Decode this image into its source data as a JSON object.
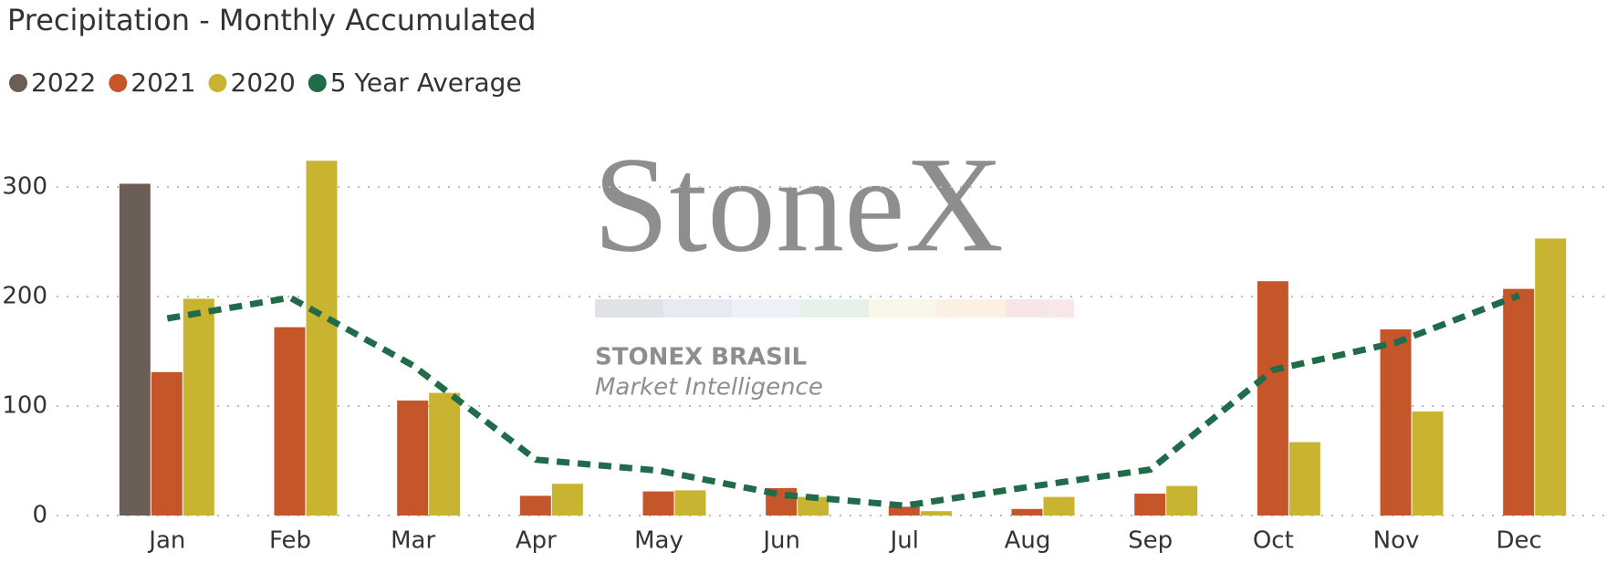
{
  "chart_data": {
    "type": "bar",
    "title": "Precipitation - Monthly Accumulated",
    "watermark": {
      "brand": "StoneX",
      "company": "STONEX BRASIL",
      "unit": "Market Intelligence"
    },
    "categories": [
      "Jan",
      "Feb",
      "Mar",
      "Apr",
      "May",
      "Jun",
      "Jul",
      "Aug",
      "Sep",
      "Oct",
      "Nov",
      "Dec"
    ],
    "series": [
      {
        "name": "2022",
        "color": "#6b5e56",
        "values": [
          303,
          null,
          null,
          null,
          null,
          null,
          null,
          null,
          null,
          null,
          null,
          null
        ]
      },
      {
        "name": "2021",
        "color": "#c4562a",
        "values": [
          131,
          172,
          105,
          18,
          22,
          25,
          8,
          6,
          20,
          214,
          170,
          207
        ]
      },
      {
        "name": "2020",
        "color": "#c8b431",
        "values": [
          198,
          324,
          112,
          29,
          23,
          17,
          4,
          17,
          27,
          67,
          95,
          253
        ]
      },
      {
        "name": "5 Year Average",
        "type": "line",
        "color": "#1f6b4a",
        "values": [
          180,
          199,
          137,
          51,
          41,
          19,
          9,
          26,
          42,
          133,
          158,
          201
        ]
      }
    ],
    "ylim": [
      0,
      330
    ],
    "yticks": [
      0,
      100,
      200,
      300
    ],
    "grid": true,
    "legend": "top-left"
  }
}
